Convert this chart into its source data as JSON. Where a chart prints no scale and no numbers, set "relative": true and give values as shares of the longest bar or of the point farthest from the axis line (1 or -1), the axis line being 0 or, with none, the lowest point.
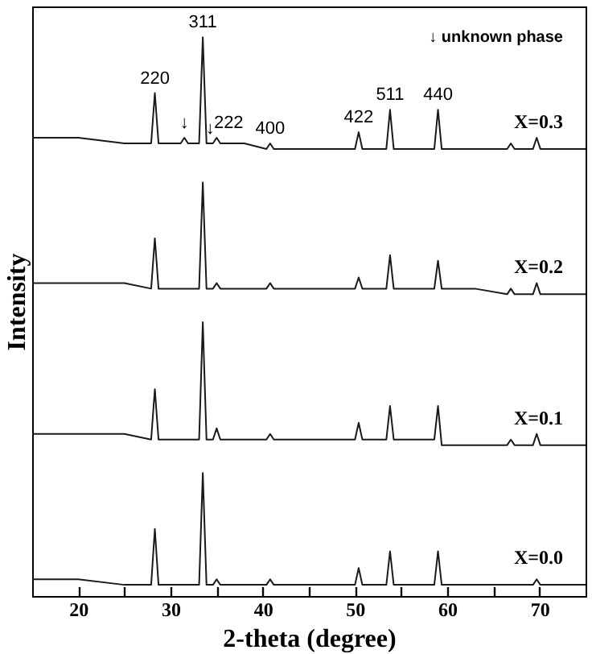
{
  "chart_data": {
    "type": "line",
    "relative": true,
    "xlabel": "2-theta (degree)",
    "ylabel": "Intensity",
    "xlim": [
      15,
      75
    ],
    "xticks": [
      20,
      {
        "value": 25,
        "label": null
      },
      30,
      {
        "value": 35,
        "label": null
      },
      40,
      {
        "value": 45,
        "label": null
      },
      50,
      {
        "value": 55,
        "label": null
      },
      60,
      {
        "value": 65,
        "label": null
      },
      70
    ],
    "grid": false,
    "legend": false,
    "marker": "none",
    "line_style": "solid",
    "x": [
      15,
      20,
      25,
      27.9,
      28.3,
      28.7,
      31.1,
      31.5,
      31.9,
      33.1,
      33.5,
      33.9,
      34.6,
      35.0,
      35.4,
      38,
      40.4,
      40.8,
      41.2,
      45,
      50.0,
      50.4,
      50.8,
      53.4,
      53.8,
      54.2,
      58.6,
      59.0,
      59.4,
      63,
      66.5,
      66.9,
      67.3,
      69.3,
      69.7,
      70.1,
      72,
      75
    ],
    "series": [
      {
        "name": "X=0.3",
        "color": "#1a1a1a",
        "values": [
          0.82,
          0.82,
          0.81,
          0.81,
          0.9,
          0.81,
          0.81,
          0.82,
          0.81,
          0.81,
          1,
          0.81,
          0.81,
          0.82,
          0.81,
          0.81,
          0.8,
          0.81,
          0.8,
          0.8,
          0.8,
          0.83,
          0.8,
          0.8,
          0.87,
          0.8,
          0.8,
          0.87,
          0.8,
          0.8,
          0.8,
          0.81,
          0.8,
          0.8,
          0.82,
          0.8,
          0.8,
          0.8
        ]
      },
      {
        "name": "X=0.2",
        "color": "#1a1a1a",
        "values": [
          0.56,
          0.56,
          0.56,
          0.55,
          0.64,
          0.55,
          0.55,
          0.55,
          0.55,
          0.55,
          0.74,
          0.55,
          0.55,
          0.56,
          0.55,
          0.55,
          0.55,
          0.56,
          0.55,
          0.55,
          0.55,
          0.57,
          0.55,
          0.55,
          0.61,
          0.55,
          0.55,
          0.6,
          0.55,
          0.55,
          0.54,
          0.55,
          0.54,
          0.54,
          0.56,
          0.54,
          0.54,
          0.54
        ]
      },
      {
        "name": "X=0.1",
        "color": "#1a1a1a",
        "values": [
          0.29,
          0.29,
          0.29,
          0.28,
          0.37,
          0.28,
          0.28,
          0.28,
          0.28,
          0.28,
          0.49,
          0.28,
          0.28,
          0.3,
          0.28,
          0.28,
          0.28,
          0.29,
          0.28,
          0.28,
          0.28,
          0.31,
          0.28,
          0.28,
          0.34,
          0.28,
          0.28,
          0.34,
          0.27,
          0.27,
          0.27,
          0.28,
          0.27,
          0.27,
          0.29,
          0.27,
          0.27,
          0.27
        ]
      },
      {
        "name": "X=0.0",
        "color": "#1a1a1a",
        "values": [
          0.03,
          0.03,
          0.02,
          0.02,
          0.12,
          0.02,
          0.02,
          0.02,
          0.02,
          0.02,
          0.22,
          0.02,
          0.02,
          0.03,
          0.02,
          0.02,
          0.02,
          0.03,
          0.02,
          0.02,
          0.02,
          0.05,
          0.02,
          0.02,
          0.08,
          0.02,
          0.02,
          0.08,
          0.02,
          0.02,
          0.02,
          0.02,
          0.02,
          0.02,
          0.03,
          0.02,
          0.02,
          0.02
        ]
      }
    ],
    "annotations": [
      {
        "text": "220",
        "x": 28.3,
        "y": 0.9
      },
      {
        "text": "311",
        "x": 33.5,
        "y": 1
      },
      {
        "text": "↓",
        "x": 31.5,
        "y": 0.82
      },
      {
        "text": "↓",
        "x": 34.3,
        "y": 0.81
      },
      {
        "text": "222",
        "x": 36.3,
        "y": 0.82
      },
      {
        "text": "400",
        "x": 40.8,
        "y": 0.81
      },
      {
        "text": "422",
        "x": 50.4,
        "y": 0.83
      },
      {
        "text": "511",
        "x": 53.8,
        "y": 0.87
      },
      {
        "text": "440",
        "x": 59.0,
        "y": 0.87
      },
      "↓ unknown  phase"
    ]
  }
}
